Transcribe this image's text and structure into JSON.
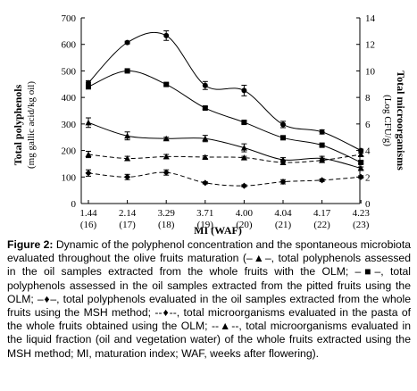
{
  "chart_data": {
    "type": "line",
    "xlabel": "MI (WAF)",
    "ylabel_left_line1": "Total polyphenols",
    "ylabel_left_line2": "(mg gallic acid/kg oil)",
    "ylabel_right_line1": "Total microorganisms",
    "ylabel_right_line2": "(Log CFU/g)",
    "categories": [
      "1.44",
      "2.14",
      "3.29",
      "3.71",
      "4.00",
      "4.04",
      "4.17",
      "4.23"
    ],
    "category_sublabels": [
      "(16)",
      "(17)",
      "(18)",
      "(19)",
      "(20)",
      "(21)",
      "(22)",
      "(23)"
    ],
    "ylim_left": [
      0,
      700
    ],
    "yticks_left": [
      0,
      100,
      200,
      300,
      400,
      500,
      600,
      700
    ],
    "ylim_right": [
      0,
      14
    ],
    "yticks_right": [
      0,
      2,
      4,
      6,
      8,
      10,
      12,
      14
    ],
    "grid": false,
    "series": [
      {
        "axis": "left",
        "marker": "circle",
        "dash": "solid",
        "values": [
          455,
          607,
          633,
          445,
          426,
          298,
          270,
          200
        ],
        "errors": [
          8,
          5,
          18,
          15,
          20,
          12,
          8,
          5
        ]
      },
      {
        "axis": "left",
        "marker": "square",
        "dash": "solid",
        "values": [
          440,
          500,
          449,
          360,
          306,
          248,
          220,
          155
        ],
        "errors": [
          6,
          5,
          5,
          5,
          5,
          5,
          5,
          5
        ]
      },
      {
        "axis": "left",
        "marker": "triangle",
        "dash": "solid",
        "values": [
          305,
          255,
          245,
          245,
          210,
          165,
          170,
          133
        ],
        "errors": [
          18,
          15,
          5,
          12,
          15,
          8,
          8,
          5
        ]
      },
      {
        "axis": "left",
        "marker": "triangle",
        "dash": "dashed",
        "values": [
          185,
          170,
          177,
          175,
          173,
          155,
          163,
          185
        ],
        "errors": [
          12,
          8,
          8,
          5,
          5,
          8,
          8,
          5
        ]
      },
      {
        "axis": "left",
        "marker": "diamond",
        "dash": "dashed",
        "values": [
          115,
          100,
          117,
          78,
          67,
          82,
          88,
          100
        ],
        "errors": [
          12,
          10,
          10,
          4,
          4,
          8,
          5,
          5
        ]
      }
    ]
  },
  "caption": {
    "label": "Figure 2:",
    "text": " Dynamic of the polyphenol concentration and the spontaneous microbiota evaluated throughout the olive fruits maturation (–▲–, total polyphenols assessed in the oil samples extracted from the whole fruits with the OLM; –■–, total polyphenols assessed in the oil samples extracted from the pitted fruits using the OLM; –♦–, total polyphenols evaluated in the oil samples extracted from the whole fruits using the MSH method; --♦--, total microorganisms evaluated in the pasta of the whole fruits obtained using the OLM; --▲--, total microorganisms evaluated in the liquid fraction (oil and vegetation water) of the whole fruits extracted using the MSH method; MI, maturation index; WAF, weeks after flowering)."
  }
}
